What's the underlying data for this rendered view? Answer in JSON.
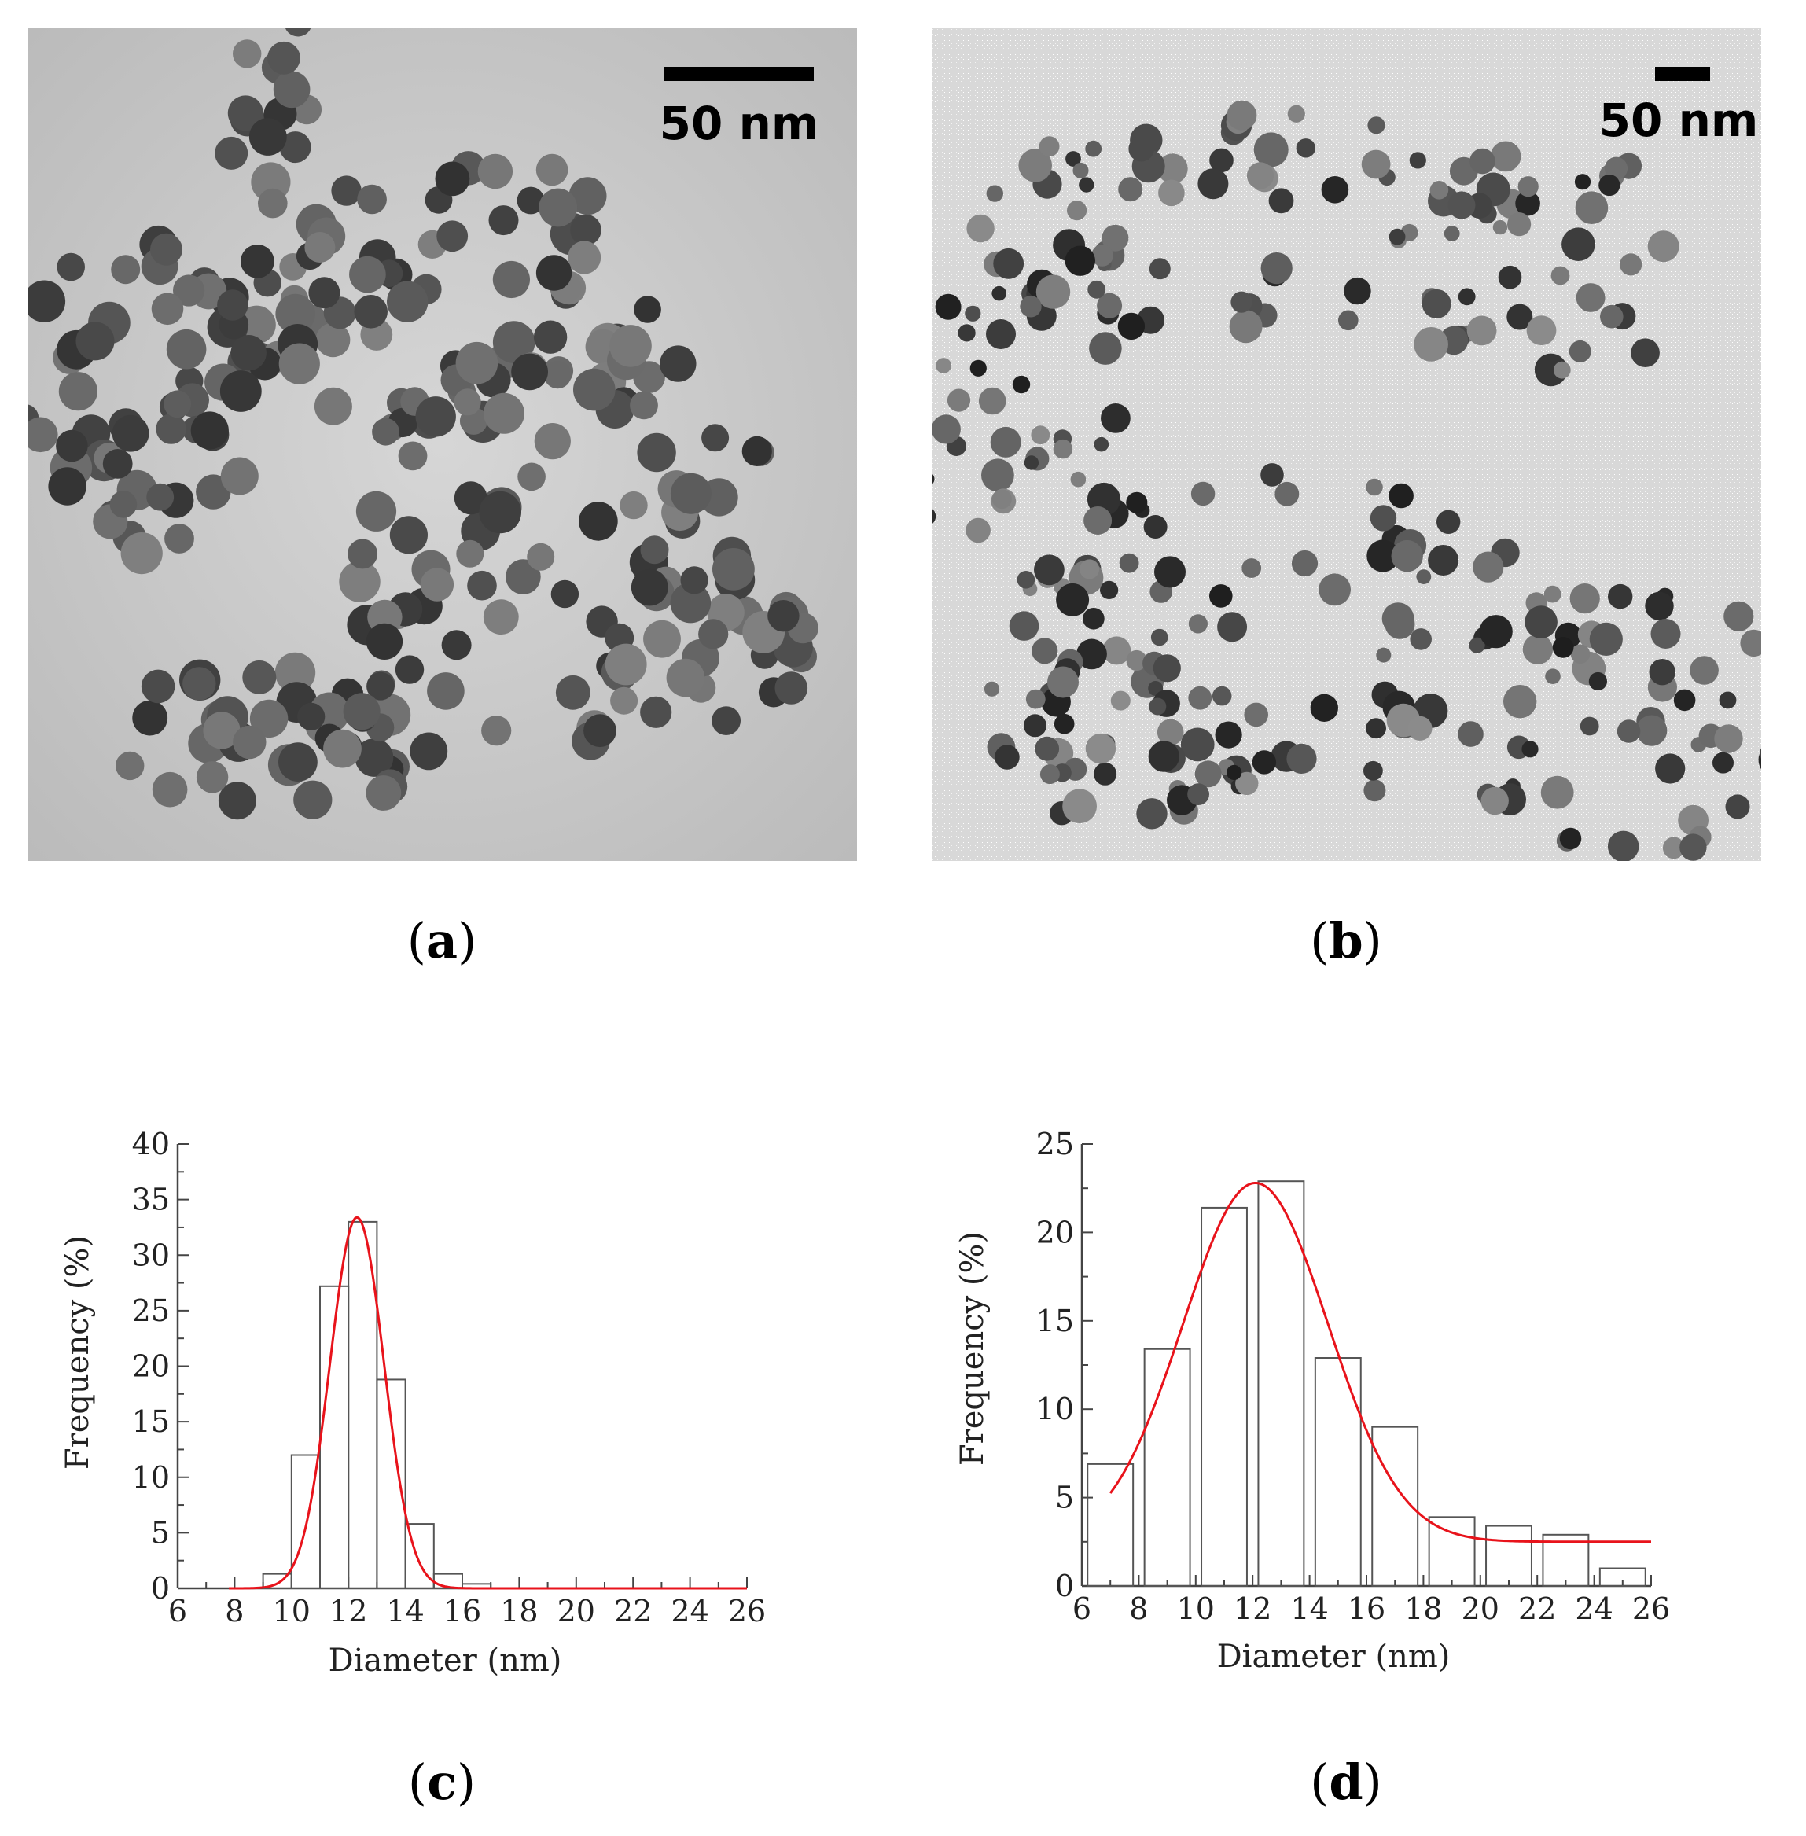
{
  "panels": {
    "a": {
      "label": "a",
      "scale_bar": "50 nm"
    },
    "b": {
      "label": "b",
      "scale_bar": "50 nm"
    },
    "c": {
      "label": "c"
    },
    "d": {
      "label": "d"
    }
  },
  "chart_data": [
    {
      "id": "c",
      "type": "bar",
      "xlabel": "Diameter (nm)",
      "ylabel": "Frequency (%)",
      "xlim": [
        6,
        26
      ],
      "ylim": [
        0,
        40
      ],
      "xticks": [
        6,
        8,
        10,
        12,
        14,
        16,
        18,
        20,
        22,
        24,
        26
      ],
      "yticks": [
        0,
        5,
        10,
        15,
        20,
        25,
        30,
        35,
        40
      ],
      "bins": [
        {
          "x0": 9.0,
          "x1": 10.0,
          "value": 1.3
        },
        {
          "x0": 10.0,
          "x1": 11.0,
          "value": 12.0
        },
        {
          "x0": 11.0,
          "x1": 12.0,
          "value": 27.2
        },
        {
          "x0": 12.0,
          "x1": 13.0,
          "value": 33.0
        },
        {
          "x0": 13.0,
          "x1": 14.0,
          "value": 18.8
        },
        {
          "x0": 14.0,
          "x1": 15.0,
          "value": 5.8
        },
        {
          "x0": 15.0,
          "x1": 16.0,
          "value": 1.3
        },
        {
          "x0": 16.0,
          "x1": 17.0,
          "value": 0.4
        }
      ],
      "fit": {
        "type": "gaussian",
        "y0": 0,
        "amplitude": 33.4,
        "center": 12.3,
        "sigma": 0.95,
        "x_range": [
          7.8,
          26
        ],
        "color": "#e8131b"
      },
      "grid": false
    },
    {
      "id": "d",
      "type": "bar",
      "xlabel": "Diameter (nm)",
      "ylabel": "Frequency (%)",
      "xlim": [
        6,
        26
      ],
      "ylim": [
        0,
        25
      ],
      "xticks": [
        6,
        8,
        10,
        12,
        14,
        16,
        18,
        20,
        22,
        24,
        26
      ],
      "yticks": [
        0,
        5,
        10,
        15,
        20,
        25
      ],
      "bins": [
        {
          "x0": 6.2,
          "x1": 7.8,
          "value": 6.9
        },
        {
          "x0": 8.2,
          "x1": 9.8,
          "value": 13.4
        },
        {
          "x0": 10.2,
          "x1": 11.8,
          "value": 21.4
        },
        {
          "x0": 12.2,
          "x1": 13.8,
          "value": 22.9
        },
        {
          "x0": 14.2,
          "x1": 15.8,
          "value": 12.9
        },
        {
          "x0": 16.2,
          "x1": 17.8,
          "value": 9.0
        },
        {
          "x0": 18.2,
          "x1": 19.8,
          "value": 3.9
        },
        {
          "x0": 20.2,
          "x1": 21.8,
          "value": 3.4
        },
        {
          "x0": 22.2,
          "x1": 23.8,
          "value": 2.9
        },
        {
          "x0": 24.2,
          "x1": 25.8,
          "value": 1.0
        }
      ],
      "fit": {
        "type": "gaussian",
        "y0": 2.5,
        "amplitude": 20.3,
        "center": 12.1,
        "sigma": 2.55,
        "x_range": [
          7.0,
          26
        ],
        "color": "#e8131b"
      },
      "grid": false
    }
  ]
}
